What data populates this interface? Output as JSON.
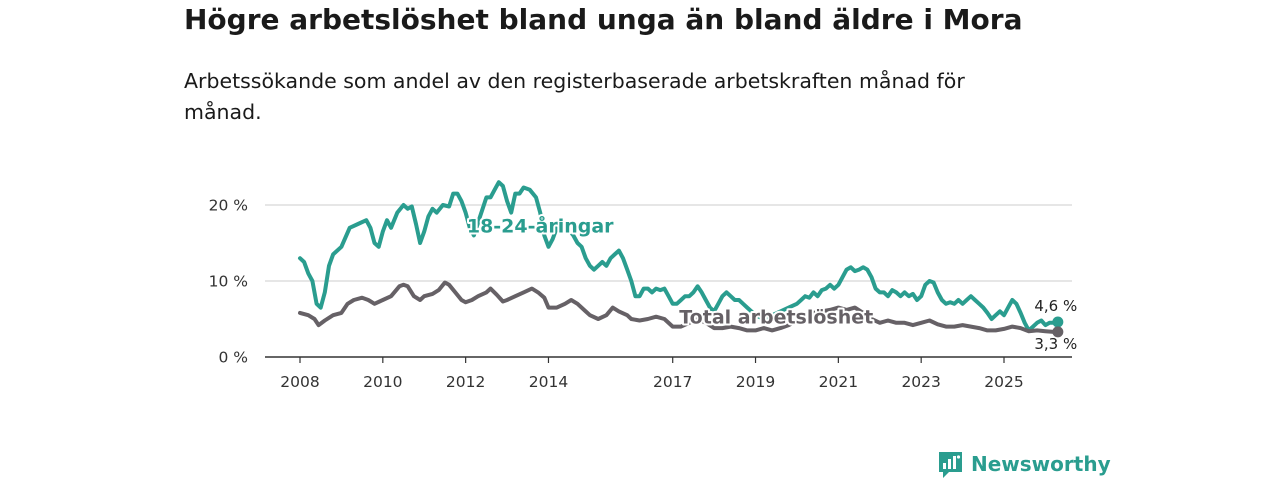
{
  "header": {
    "title": "Högre arbetslöshet bland unga än bland äldre i Mora",
    "subtitle": "Arbetssökande som andel av den registerbaserade arbetskraften månad för månad."
  },
  "brand": {
    "name": "Newsworthy",
    "icon": "bar-chart-speech-bubble-icon",
    "color": "#2a9d8f"
  },
  "chart_data": {
    "type": "line",
    "x_ticks": [
      {
        "year": 2008,
        "label": "2008"
      },
      {
        "year": 2010,
        "label": "2010"
      },
      {
        "year": 2012,
        "label": "2012"
      },
      {
        "year": 2014,
        "label": "2014"
      },
      {
        "year": 2017,
        "label": "2017"
      },
      {
        "year": 2019,
        "label": "2019"
      },
      {
        "year": 2021,
        "label": "2021"
      },
      {
        "year": 2023,
        "label": "2023"
      },
      {
        "year": 2025,
        "label": "2025"
      }
    ],
    "y_ticks": [
      {
        "value": 0,
        "label": "0 %"
      },
      {
        "value": 10,
        "label": "10 %"
      },
      {
        "value": 20,
        "label": "20 %"
      }
    ],
    "xlim": [
      2007.6,
      2026.8
    ],
    "ylim": [
      0,
      24
    ],
    "series": [
      {
        "name": "18-24-åringar",
        "label": "18-24-åringar",
        "color": "#2a9d8f",
        "label_at": [
          2013.8,
          16.4
        ],
        "end_label": "4,6 %",
        "points": [
          [
            2008.0,
            13.0
          ],
          [
            2008.1,
            12.5
          ],
          [
            2008.2,
            11.0
          ],
          [
            2008.3,
            10.0
          ],
          [
            2008.4,
            7.0
          ],
          [
            2008.5,
            6.5
          ],
          [
            2008.6,
            8.5
          ],
          [
            2008.7,
            12.0
          ],
          [
            2008.8,
            13.5
          ],
          [
            2009.0,
            14.5
          ],
          [
            2009.2,
            17.0
          ],
          [
            2009.4,
            17.5
          ],
          [
            2009.6,
            18.0
          ],
          [
            2009.7,
            17.0
          ],
          [
            2009.8,
            15.0
          ],
          [
            2009.9,
            14.5
          ],
          [
            2010.0,
            16.5
          ],
          [
            2010.1,
            18.0
          ],
          [
            2010.2,
            17.0
          ],
          [
            2010.35,
            19.0
          ],
          [
            2010.5,
            20.0
          ],
          [
            2010.6,
            19.5
          ],
          [
            2010.7,
            19.8
          ],
          [
            2010.8,
            17.5
          ],
          [
            2010.9,
            15.0
          ],
          [
            2011.0,
            16.5
          ],
          [
            2011.1,
            18.5
          ],
          [
            2011.2,
            19.5
          ],
          [
            2011.3,
            19.0
          ],
          [
            2011.45,
            20.0
          ],
          [
            2011.6,
            19.8
          ],
          [
            2011.7,
            21.5
          ],
          [
            2011.8,
            21.5
          ],
          [
            2011.9,
            20.5
          ],
          [
            2012.0,
            19.0
          ],
          [
            2012.1,
            17.0
          ],
          [
            2012.2,
            16.0
          ],
          [
            2012.35,
            18.5
          ],
          [
            2012.5,
            21.0
          ],
          [
            2012.6,
            21.0
          ],
          [
            2012.7,
            22.0
          ],
          [
            2012.8,
            23.0
          ],
          [
            2012.9,
            22.5
          ],
          [
            2013.0,
            20.5
          ],
          [
            2013.1,
            19.0
          ],
          [
            2013.2,
            21.5
          ],
          [
            2013.3,
            21.5
          ],
          [
            2013.4,
            22.3
          ],
          [
            2013.55,
            22.0
          ],
          [
            2013.7,
            21.0
          ],
          [
            2013.8,
            19.0
          ],
          [
            2013.9,
            16.0
          ],
          [
            2014.0,
            14.5
          ],
          [
            2014.1,
            15.5
          ],
          [
            2014.2,
            17.0
          ],
          [
            2014.3,
            17.5
          ],
          [
            2014.45,
            17.0
          ],
          [
            2014.6,
            16.0
          ],
          [
            2014.7,
            15.0
          ],
          [
            2014.8,
            14.5
          ],
          [
            2014.9,
            13.0
          ],
          [
            2015.0,
            12.0
          ],
          [
            2015.1,
            11.5
          ],
          [
            2015.2,
            12.0
          ],
          [
            2015.3,
            12.5
          ],
          [
            2015.4,
            12.0
          ],
          [
            2015.5,
            13.0
          ],
          [
            2015.6,
            13.5
          ],
          [
            2015.7,
            14.0
          ],
          [
            2015.8,
            13.0
          ],
          [
            2015.9,
            11.5
          ],
          [
            2016.0,
            10.0
          ],
          [
            2016.1,
            8.0
          ],
          [
            2016.2,
            8.0
          ],
          [
            2016.3,
            9.0
          ],
          [
            2016.4,
            9.0
          ],
          [
            2016.5,
            8.5
          ],
          [
            2016.6,
            9.0
          ],
          [
            2016.7,
            8.8
          ],
          [
            2016.8,
            9.0
          ],
          [
            2016.9,
            8.0
          ],
          [
            2017.0,
            7.0
          ],
          [
            2017.1,
            7.0
          ],
          [
            2017.2,
            7.5
          ],
          [
            2017.3,
            8.0
          ],
          [
            2017.4,
            8.0
          ],
          [
            2017.5,
            8.5
          ],
          [
            2017.6,
            9.3
          ],
          [
            2017.7,
            8.5
          ],
          [
            2017.8,
            7.5
          ],
          [
            2017.9,
            6.5
          ],
          [
            2018.0,
            6.0
          ],
          [
            2018.1,
            7.0
          ],
          [
            2018.2,
            8.0
          ],
          [
            2018.3,
            8.5
          ],
          [
            2018.4,
            8.0
          ],
          [
            2018.5,
            7.5
          ],
          [
            2018.6,
            7.5
          ],
          [
            2018.7,
            7.0
          ],
          [
            2018.8,
            6.5
          ],
          [
            2018.9,
            6.0
          ],
          [
            2019.0,
            5.5
          ],
          [
            2019.2,
            5.0
          ],
          [
            2019.4,
            5.5
          ],
          [
            2019.6,
            6.0
          ],
          [
            2019.8,
            6.5
          ],
          [
            2020.0,
            7.0
          ],
          [
            2020.1,
            7.5
          ],
          [
            2020.2,
            8.0
          ],
          [
            2020.3,
            7.8
          ],
          [
            2020.4,
            8.5
          ],
          [
            2020.5,
            8.0
          ],
          [
            2020.6,
            8.8
          ],
          [
            2020.7,
            9.0
          ],
          [
            2020.8,
            9.5
          ],
          [
            2020.9,
            9.0
          ],
          [
            2021.0,
            9.5
          ],
          [
            2021.1,
            10.5
          ],
          [
            2021.2,
            11.5
          ],
          [
            2021.3,
            11.8
          ],
          [
            2021.4,
            11.3
          ],
          [
            2021.5,
            11.5
          ],
          [
            2021.6,
            11.8
          ],
          [
            2021.7,
            11.5
          ],
          [
            2021.8,
            10.5
          ],
          [
            2021.9,
            9.0
          ],
          [
            2022.0,
            8.5
          ],
          [
            2022.1,
            8.5
          ],
          [
            2022.2,
            8.0
          ],
          [
            2022.3,
            8.8
          ],
          [
            2022.4,
            8.5
          ],
          [
            2022.5,
            8.0
          ],
          [
            2022.6,
            8.5
          ],
          [
            2022.7,
            8.0
          ],
          [
            2022.8,
            8.3
          ],
          [
            2022.9,
            7.5
          ],
          [
            2023.0,
            8.0
          ],
          [
            2023.1,
            9.5
          ],
          [
            2023.2,
            10.0
          ],
          [
            2023.3,
            9.8
          ],
          [
            2023.4,
            8.5
          ],
          [
            2023.5,
            7.5
          ],
          [
            2023.6,
            7.0
          ],
          [
            2023.7,
            7.2
          ],
          [
            2023.8,
            7.0
          ],
          [
            2023.9,
            7.5
          ],
          [
            2024.0,
            7.0
          ],
          [
            2024.1,
            7.5
          ],
          [
            2024.2,
            8.0
          ],
          [
            2024.3,
            7.5
          ],
          [
            2024.4,
            7.0
          ],
          [
            2024.5,
            6.5
          ],
          [
            2024.6,
            5.8
          ],
          [
            2024.7,
            5.0
          ],
          [
            2024.8,
            5.5
          ],
          [
            2024.9,
            6.0
          ],
          [
            2025.0,
            5.5
          ],
          [
            2025.1,
            6.5
          ],
          [
            2025.2,
            7.5
          ],
          [
            2025.3,
            7.0
          ],
          [
            2025.4,
            5.8
          ],
          [
            2025.5,
            4.5
          ],
          [
            2025.6,
            3.5
          ],
          [
            2025.7,
            4.0
          ],
          [
            2025.8,
            4.5
          ],
          [
            2025.9,
            4.8
          ],
          [
            2026.0,
            4.2
          ],
          [
            2026.1,
            4.5
          ],
          [
            2026.2,
            4.5
          ],
          [
            2026.3,
            4.6
          ]
        ]
      },
      {
        "name": "Total arbetslöshet",
        "label": "Total arbetslöshet",
        "color": "#666166",
        "label_at": [
          2019.5,
          4.4
        ],
        "end_label": "3,3 %",
        "points": [
          [
            2008.0,
            5.8
          ],
          [
            2008.2,
            5.5
          ],
          [
            2008.35,
            5.0
          ],
          [
            2008.45,
            4.2
          ],
          [
            2008.6,
            4.8
          ],
          [
            2008.8,
            5.5
          ],
          [
            2009.0,
            5.8
          ],
          [
            2009.15,
            7.0
          ],
          [
            2009.3,
            7.5
          ],
          [
            2009.5,
            7.8
          ],
          [
            2009.65,
            7.5
          ],
          [
            2009.8,
            7.0
          ],
          [
            2010.0,
            7.5
          ],
          [
            2010.2,
            8.0
          ],
          [
            2010.4,
            9.3
          ],
          [
            2010.5,
            9.5
          ],
          [
            2010.6,
            9.3
          ],
          [
            2010.75,
            8.0
          ],
          [
            2010.9,
            7.5
          ],
          [
            2011.0,
            8.0
          ],
          [
            2011.2,
            8.3
          ],
          [
            2011.35,
            8.8
          ],
          [
            2011.5,
            9.8
          ],
          [
            2011.6,
            9.5
          ],
          [
            2011.75,
            8.5
          ],
          [
            2011.9,
            7.5
          ],
          [
            2012.0,
            7.2
          ],
          [
            2012.15,
            7.5
          ],
          [
            2012.3,
            8.0
          ],
          [
            2012.5,
            8.5
          ],
          [
            2012.6,
            9.0
          ],
          [
            2012.75,
            8.2
          ],
          [
            2012.9,
            7.3
          ],
          [
            2013.0,
            7.5
          ],
          [
            2013.2,
            8.0
          ],
          [
            2013.4,
            8.5
          ],
          [
            2013.6,
            9.0
          ],
          [
            2013.75,
            8.5
          ],
          [
            2013.9,
            7.8
          ],
          [
            2014.0,
            6.5
          ],
          [
            2014.2,
            6.5
          ],
          [
            2014.4,
            7.0
          ],
          [
            2014.55,
            7.5
          ],
          [
            2014.7,
            7.0
          ],
          [
            2014.9,
            6.0
          ],
          [
            2015.0,
            5.5
          ],
          [
            2015.2,
            5.0
          ],
          [
            2015.4,
            5.5
          ],
          [
            2015.55,
            6.5
          ],
          [
            2015.7,
            6.0
          ],
          [
            2015.9,
            5.5
          ],
          [
            2016.0,
            5.0
          ],
          [
            2016.2,
            4.8
          ],
          [
            2016.4,
            5.0
          ],
          [
            2016.6,
            5.3
          ],
          [
            2016.8,
            5.0
          ],
          [
            2017.0,
            4.0
          ],
          [
            2017.2,
            4.0
          ],
          [
            2017.4,
            4.5
          ],
          [
            2017.6,
            5.0
          ],
          [
            2017.8,
            4.5
          ],
          [
            2018.0,
            3.8
          ],
          [
            2018.2,
            3.8
          ],
          [
            2018.4,
            4.0
          ],
          [
            2018.6,
            3.8
          ],
          [
            2018.8,
            3.5
          ],
          [
            2019.0,
            3.5
          ],
          [
            2019.2,
            3.8
          ],
          [
            2019.4,
            3.5
          ],
          [
            2019.6,
            3.8
          ],
          [
            2019.8,
            4.2
          ],
          [
            2020.0,
            4.8
          ],
          [
            2020.2,
            5.3
          ],
          [
            2020.4,
            5.8
          ],
          [
            2020.6,
            6.0
          ],
          [
            2020.8,
            6.2
          ],
          [
            2021.0,
            6.5
          ],
          [
            2021.2,
            6.2
          ],
          [
            2021.4,
            6.5
          ],
          [
            2021.6,
            5.8
          ],
          [
            2021.8,
            5.0
          ],
          [
            2022.0,
            4.5
          ],
          [
            2022.2,
            4.8
          ],
          [
            2022.4,
            4.5
          ],
          [
            2022.6,
            4.5
          ],
          [
            2022.8,
            4.2
          ],
          [
            2023.0,
            4.5
          ],
          [
            2023.2,
            4.8
          ],
          [
            2023.4,
            4.3
          ],
          [
            2023.6,
            4.0
          ],
          [
            2023.8,
            4.0
          ],
          [
            2024.0,
            4.2
          ],
          [
            2024.2,
            4.0
          ],
          [
            2024.4,
            3.8
          ],
          [
            2024.6,
            3.5
          ],
          [
            2024.8,
            3.5
          ],
          [
            2025.0,
            3.7
          ],
          [
            2025.2,
            4.0
          ],
          [
            2025.4,
            3.8
          ],
          [
            2025.6,
            3.4
          ],
          [
            2025.8,
            3.5
          ],
          [
            2026.0,
            3.4
          ],
          [
            2026.2,
            3.3
          ],
          [
            2026.3,
            3.3
          ]
        ]
      }
    ]
  }
}
